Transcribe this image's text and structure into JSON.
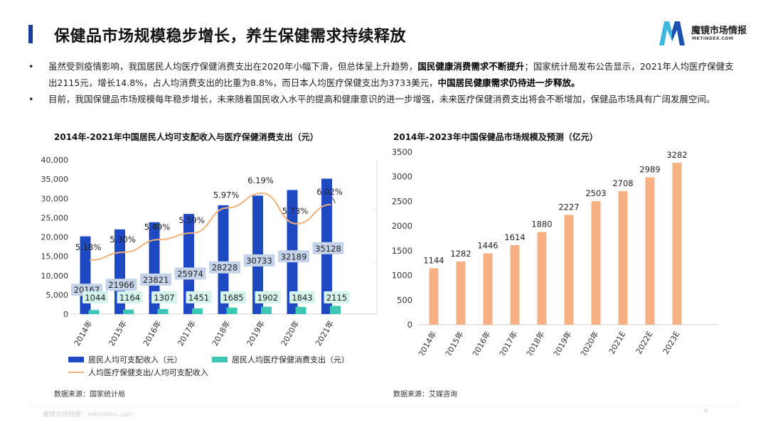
{
  "header": {
    "title": "保健品市场规模稳步增长，养生保健需求持续释放"
  },
  "logo": {
    "name": "魔镜市场情报",
    "url": "MKTINDEX.COM",
    "colors": [
      "#3fb8e0",
      "#1d4fb0"
    ]
  },
  "bullets": [
    {
      "dot": "•",
      "parts": [
        {
          "text": "虽然受到疫情影响，我国居民人均医疗保健消费支出在2020年小幅下滑，但总体呈上升趋势，",
          "bold": false
        },
        {
          "text": "国民健康消费需求不断提升",
          "bold": true
        },
        {
          "text": "；国家统计局发布公告显示，2021年人均医疗保健支出2115元，增长14.8%，占人均消费支出的比重为8.8%，而日本人均医疗保健支出为3733美元，",
          "bold": false
        },
        {
          "text": "中国居民健康需求仍待进一步释放。",
          "bold": true
        }
      ]
    },
    {
      "dot": "•",
      "parts": [
        {
          "text": "目前，我国保健品市场规模每年稳步增长，未来随着国民收入水平的提高和健康意识的进一步增强，未来医疗保健消费支出将会不断增加，保健品市场具有广阔发展空间。",
          "bold": false
        }
      ]
    }
  ],
  "chart_data": [
    {
      "type": "bar",
      "title": "2014年-2021年中国居民人均可支配收入与医疗保健消费支出（元）",
      "categories": [
        "2014年",
        "2015年",
        "2016年",
        "2017年",
        "2018年",
        "2019年",
        "2020年",
        "2021年"
      ],
      "series": [
        {
          "name": "居民人均可支配收入（元）",
          "values": [
            20167,
            21966,
            23821,
            25974,
            28228,
            30733,
            32189,
            35128
          ],
          "color": "#1f49c2",
          "label_bg": "#c5d3ea"
        },
        {
          "name": "居民人均医疗保健消费支出（元）",
          "values": [
            1044,
            1164,
            1307,
            1451,
            1685,
            1902,
            1843,
            2115
          ],
          "color": "#3cc6b4",
          "label_bg": "#d4f3ec"
        },
        {
          "name": "人均医疗保健支出/人均可支配收入",
          "type": "line",
          "values": [
            5.18,
            5.3,
            5.49,
            5.59,
            5.97,
            6.19,
            5.73,
            6.02
          ],
          "labels": [
            "5.18%",
            "5.30%",
            "5.49%",
            "5.59%",
            "5.97%",
            "6.19%",
            "5.73%",
            "6.02%"
          ],
          "color": "#f2b27a"
        }
      ],
      "yticks": [
        "0",
        "5,000",
        "10,000",
        "15,000",
        "20,000",
        "25,000",
        "30,000",
        "35,000",
        "40,000"
      ],
      "ylim": [
        0,
        40000
      ],
      "y2lim": [
        0,
        8
      ],
      "legend_position": "bottom",
      "grid": false,
      "source": "数据来源：国家统计局"
    },
    {
      "type": "bar",
      "title": "2014年-2023年中国保健品市场规模及预测（亿元）",
      "categories": [
        "2014年",
        "2015年",
        "2016年",
        "2017年",
        "2018年",
        "2019年",
        "2020年",
        "2021E",
        "2022E",
        "2023E"
      ],
      "values": [
        1144,
        1282,
        1446,
        1614,
        1880,
        2227,
        2503,
        2708,
        2989,
        3282
      ],
      "color": "#f6b183",
      "yticks": [
        "0",
        "500",
        "1000",
        "1500",
        "2000",
        "2500",
        "3000",
        "3500"
      ],
      "ylim": [
        0,
        3500
      ],
      "grid": false,
      "source": "数据来源：艾媒咨询"
    }
  ],
  "footer": {
    "text": "魔镜市场情报：mktindex.com",
    "page": "6"
  }
}
